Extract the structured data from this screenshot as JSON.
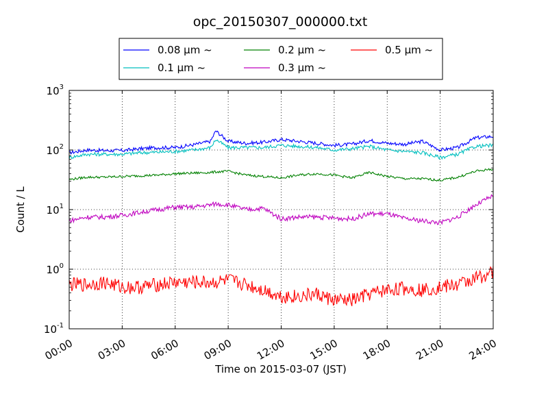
{
  "chart_data": {
    "type": "line",
    "title": "opc_20150307_000000.txt",
    "xlabel": "Time on 2015-03-07 (JST)",
    "ylabel": "Count / L",
    "yscale": "log",
    "ylim": [
      0.1,
      1000
    ],
    "xlim": [
      "00:00",
      "24:00"
    ],
    "grid": true,
    "legend_position": "top",
    "x_tick_labels": [
      "00:00",
      "03:00",
      "06:00",
      "09:00",
      "12:00",
      "15:00",
      "18:00",
      "21:00",
      "24:00"
    ],
    "y_tick_labels": [
      {
        "base": "10",
        "exp": "-1"
      },
      {
        "base": "10",
        "exp": "0"
      },
      {
        "base": "10",
        "exp": "1"
      },
      {
        "base": "10",
        "exp": "2"
      },
      {
        "base": "10",
        "exp": "3"
      }
    ],
    "x_hours": [
      0,
      1,
      2,
      3,
      4,
      5,
      6,
      7,
      8,
      8.3,
      9,
      10,
      11,
      12,
      13,
      14,
      15,
      16,
      17,
      18,
      19,
      20,
      21,
      22,
      23,
      24
    ],
    "series": [
      {
        "name": "0.08 μm ~",
        "color": "#0000ff",
        "values": [
          90,
          100,
          98,
          98,
          105,
          110,
          110,
          122,
          140,
          210,
          140,
          130,
          135,
          150,
          140,
          130,
          120,
          125,
          145,
          130,
          125,
          140,
          100,
          110,
          160,
          170
        ]
      },
      {
        "name": "0.1 μm ~",
        "color": "#00bfbf",
        "values": [
          75,
          85,
          85,
          85,
          90,
          92,
          95,
          100,
          110,
          150,
          110,
          110,
          110,
          120,
          115,
          110,
          100,
          105,
          115,
          100,
          95,
          90,
          75,
          85,
          115,
          120
        ]
      },
      {
        "name": "0.2 μm ~",
        "color": "#008000",
        "values": [
          32,
          35,
          35,
          36,
          37,
          38,
          40,
          41,
          42,
          43,
          44,
          38,
          36,
          34,
          38,
          40,
          38,
          34,
          42,
          36,
          33,
          33,
          31,
          35,
          44,
          48
        ]
      },
      {
        "name": "0.3 μm ~",
        "color": "#bf00bf",
        "values": [
          6.5,
          7.5,
          7.5,
          8,
          9,
          10,
          11,
          11,
          12,
          12.5,
          12,
          10,
          10.5,
          7,
          7.5,
          7.5,
          7.2,
          7,
          8.5,
          8.5,
          7,
          6.5,
          6,
          7.5,
          12,
          17
        ]
      },
      {
        "name": "0.5 μm ~",
        "color": "#ff0000",
        "values": [
          0.55,
          0.55,
          0.6,
          0.5,
          0.5,
          0.55,
          0.6,
          0.6,
          0.6,
          0.6,
          0.65,
          0.55,
          0.45,
          0.35,
          0.35,
          0.38,
          0.3,
          0.3,
          0.38,
          0.45,
          0.48,
          0.45,
          0.5,
          0.55,
          0.7,
          0.9
        ]
      }
    ]
  }
}
